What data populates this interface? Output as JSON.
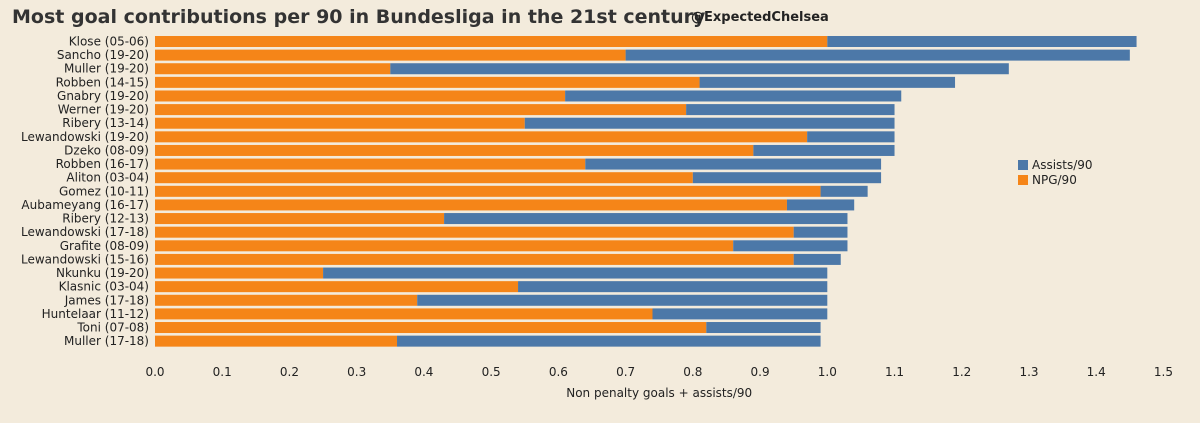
{
  "header": {
    "title": "Most goal contributions per 90 in Bundesliga in the 21st century",
    "handle": "@ExpectedChelsea"
  },
  "colors": {
    "assists": "#4c78a8",
    "npg": "#f58518",
    "background": "#f3ebdc"
  },
  "chart_data": {
    "type": "bar",
    "orientation": "horizontal",
    "stacked": true,
    "title": "Most goal contributions per 90 in Bundesliga in the 21st century",
    "xlabel": "Non penalty goals + assists/90",
    "ylabel": "",
    "xlim": [
      0,
      1.5
    ],
    "xticks": [
      "0.0",
      "0.1",
      "0.2",
      "0.3",
      "0.4",
      "0.5",
      "0.6",
      "0.7",
      "0.8",
      "0.9",
      "1.0",
      "1.1",
      "1.2",
      "1.3",
      "1.4",
      "1.5"
    ],
    "grid": false,
    "legend_position": "right",
    "categories": [
      "Klose (05-06)",
      "Sancho (19-20)",
      "Muller (19-20)",
      "Robben (14-15)",
      "Gnabry (19-20)",
      "Werner (19-20)",
      "Ribery (13-14)",
      "Lewandowski (19-20)",
      "Dzeko (08-09)",
      "Robben (16-17)",
      "Aliton (03-04)",
      "Gomez (10-11)",
      "Aubameyang (16-17)",
      "Ribery (12-13)",
      "Lewandowski (17-18)",
      "Grafite (08-09)",
      "Lewandowski (15-16)",
      "Nkunku (19-20)",
      "Klasnic (03-04)",
      "James (17-18)",
      "Huntelaar (11-12)",
      "Toni (07-08)",
      "Muller (17-18)"
    ],
    "series": [
      {
        "name": "NPG/90",
        "values": [
          1.0,
          0.7,
          0.35,
          0.81,
          0.61,
          0.79,
          0.55,
          0.97,
          0.89,
          0.64,
          0.8,
          0.99,
          0.94,
          0.43,
          0.95,
          0.86,
          0.95,
          0.25,
          0.54,
          0.39,
          0.74,
          0.82,
          0.36
        ]
      },
      {
        "name": "Assists/90",
        "values": [
          0.46,
          0.75,
          0.92,
          0.38,
          0.5,
          0.31,
          0.55,
          0.13,
          0.21,
          0.44,
          0.28,
          0.07,
          0.1,
          0.6,
          0.08,
          0.17,
          0.07,
          0.75,
          0.46,
          0.61,
          0.26,
          0.17,
          0.63
        ]
      }
    ],
    "legend": [
      "Assists/90",
      "NPG/90"
    ]
  }
}
